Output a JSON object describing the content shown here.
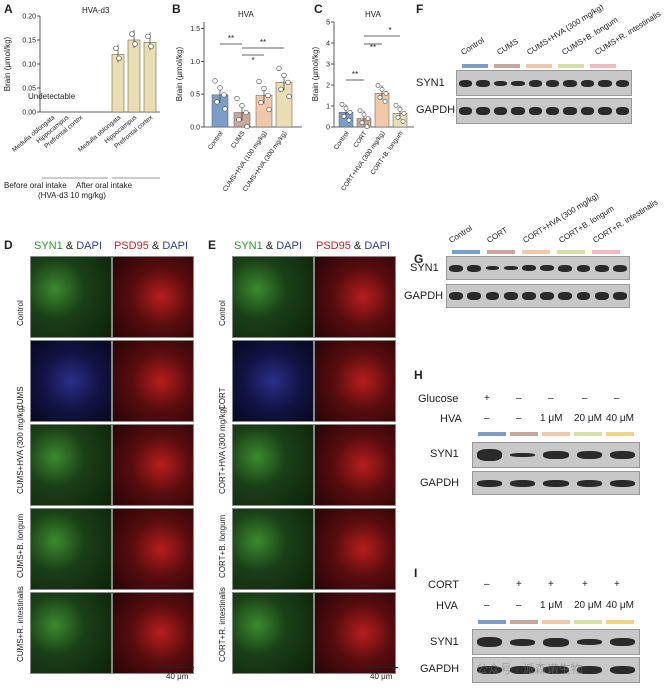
{
  "panels": {
    "A": {
      "letter": "A",
      "title": "HVA-d3",
      "ylabel": "Brain (μmol/kg)",
      "undetectable": "Undetectable",
      "yticks": [
        "0.00",
        "0.05",
        "0.10",
        "0.15",
        "0.20"
      ],
      "categories": [
        "Medulla oblongata",
        "Hippocampus",
        "Prefrontal cortex",
        "Medulla oblongata",
        "Hippocampus",
        "Prefrontal cortex"
      ],
      "group1": "Before oral intake",
      "group2_line1": "After oral intake",
      "group2_line2": "(HVA-d3  10 mg/kg)",
      "group2_line2b": "10 mg/kg)"
    },
    "B": {
      "letter": "B",
      "title": "HVA",
      "ylabel": "Brain (μmol/kg)",
      "yticks": [
        "0.0",
        "0.5",
        "1.0",
        "1.5"
      ],
      "categories": [
        "Control",
        "CUMS",
        "CUMS+HVA (100 mg/kg)",
        "CUMS+HVA (300 mg/kg)"
      ],
      "sig": [
        "**",
        "**",
        "*"
      ]
    },
    "C": {
      "letter": "C",
      "title": "HVA",
      "ylabel": "Brain (μmol/kg)",
      "yticks": [
        "0",
        "1",
        "2",
        "3",
        "4",
        "5"
      ],
      "categories": [
        "Control",
        "CORT",
        "CORT+HVA (300 mg/kg)",
        "CORT+B. longum"
      ],
      "sig": [
        "**",
        "**",
        "*"
      ]
    },
    "D": {
      "letter": "D",
      "h1": "SYN1",
      "amp": "&",
      "h2": "DAPI",
      "h3": "PSD95",
      "h4": "DAPI",
      "rows": [
        "Control",
        "CUMS",
        "CUMS+HVA (300 mg/kg)",
        "CUMS+B. longum",
        "CUMS+R. intestinalis"
      ],
      "scale": "40 μm"
    },
    "E": {
      "letter": "E",
      "h1": "SYN1",
      "amp": "&",
      "h2": "DAPI",
      "h3": "PSD95",
      "h4": "DAPI",
      "rows": [
        "Control",
        "CORT",
        "CORT+HVA (300 mg/kg)",
        "CORT+B. longum",
        "CORT+R. intestinalis"
      ],
      "scale": "40 μm"
    },
    "F": {
      "letter": "F",
      "lanes": [
        "Control",
        "CUMS",
        "CUMS+HVA (300 mg/kg)",
        "CUMS+B. longum",
        "CUMS+R. intestinalis"
      ],
      "rows": [
        "SYN1",
        "GAPDH"
      ]
    },
    "G": {
      "letter": "G",
      "lanes": [
        "Control",
        "CORT",
        "CORT+HVA (300 mg/kg)",
        "CORT+B. longum",
        "CORT+R. intestinalis"
      ],
      "rows": [
        "SYN1",
        "GAPDH"
      ]
    },
    "H": {
      "letter": "H",
      "cond1": "Glucose",
      "cond2": "HVA",
      "glucose": [
        "+",
        "–",
        "–",
        "–",
        "–"
      ],
      "hva": [
        "–",
        "–",
        "1 μM",
        "20 μM",
        "40 μM"
      ],
      "rows": [
        "SYN1",
        "GAPDH"
      ]
    },
    "I": {
      "letter": "I",
      "cond1": "CORT",
      "cond2": "HVA",
      "cort": [
        "–",
        "+",
        "+",
        "+",
        "+"
      ],
      "hva": [
        "–",
        "–",
        "1 μM",
        "20 μM",
        "40 μM"
      ],
      "rows": [
        "SYN1",
        "GAPDH"
      ]
    }
  },
  "watermark": "公众号 · 派森诺生物",
  "colors": {
    "blue": "#7b9ec9",
    "pink": "#c9a89b",
    "peach": "#f2c8a8",
    "lime": "#d6dfa6",
    "rose": "#f1b9c4",
    "tan": "#eadcb3",
    "gold": "#f1d48a"
  },
  "chart_data": [
    {
      "type": "bar",
      "title": "HVA-d3",
      "ylabel": "Brain (μmol/kg)",
      "ylim": [
        0,
        0.2
      ],
      "categories": [
        "Medulla oblongata",
        "Hippocampus",
        "Prefrontal cortex",
        "Medulla oblongata",
        "Hippocampus",
        "Prefrontal cortex"
      ],
      "values": [
        0,
        0,
        0,
        0.12,
        0.15,
        0.145
      ]
    },
    {
      "type": "bar",
      "title": "HVA",
      "ylabel": "Brain (μmol/kg)",
      "ylim": [
        0,
        1.5
      ],
      "categories": [
        "Control",
        "CUMS",
        "CUMS+HVA (100 mg/kg)",
        "CUMS+HVA (300 mg/kg)"
      ],
      "values": [
        0.49,
        0.22,
        0.48,
        0.68
      ]
    },
    {
      "type": "bar",
      "title": "HVA",
      "ylabel": "Brain (μmol/kg)",
      "ylim": [
        0,
        5
      ],
      "categories": [
        "Control",
        "CORT",
        "CORT+HVA (300 mg/kg)",
        "CORT+B. longum"
      ],
      "values": [
        0.7,
        0.4,
        1.6,
        0.65
      ]
    }
  ]
}
